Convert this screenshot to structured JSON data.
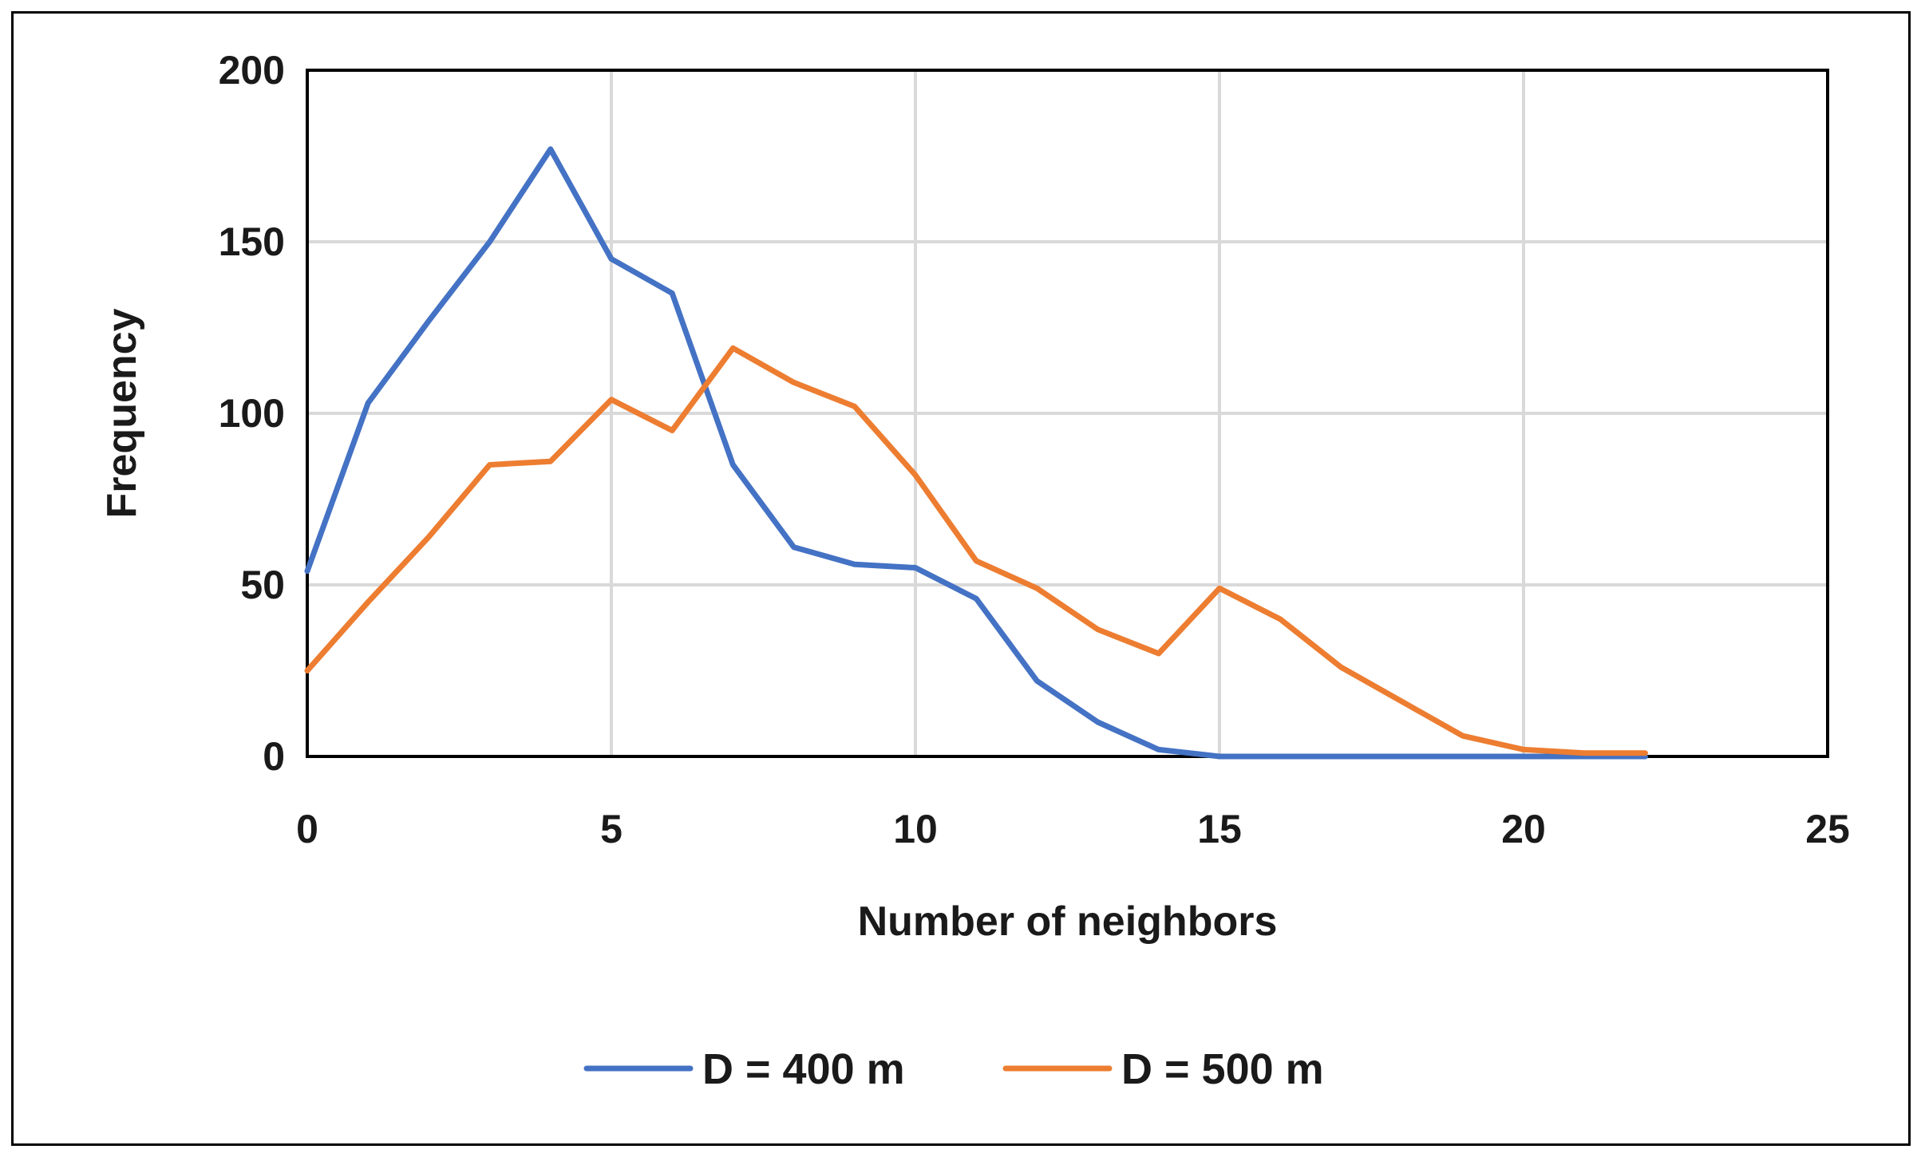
{
  "chart_data": {
    "type": "line",
    "title": "",
    "xlabel": "Number of neighbors",
    "ylabel": "Frequency",
    "xlim": [
      0,
      25
    ],
    "ylim": [
      0,
      200
    ],
    "x_ticks": [
      0,
      5,
      10,
      15,
      20,
      25
    ],
    "y_ticks": [
      0,
      50,
      100,
      150,
      200
    ],
    "grid": true,
    "legend_position": "bottom",
    "series": [
      {
        "name": "D = 400 m",
        "color": "#4472C4",
        "x": [
          0,
          1,
          2,
          3,
          4,
          5,
          6,
          7,
          8,
          9,
          10,
          11,
          12,
          13,
          14,
          15,
          16,
          17,
          18,
          19,
          20,
          21,
          22
        ],
        "values": [
          54,
          103,
          127,
          150,
          177,
          145,
          135,
          85,
          61,
          56,
          55,
          46,
          22,
          10,
          2,
          0,
          0,
          0,
          0,
          0,
          0,
          0,
          0
        ]
      },
      {
        "name": "D = 500 m",
        "color": "#ED7D31",
        "x": [
          0,
          1,
          2,
          3,
          4,
          5,
          6,
          7,
          8,
          9,
          10,
          11,
          12,
          13,
          14,
          15,
          16,
          17,
          18,
          19,
          20,
          21,
          22
        ],
        "values": [
          25,
          45,
          64,
          85,
          86,
          104,
          95,
          119,
          109,
          102,
          82,
          57,
          49,
          37,
          30,
          49,
          40,
          26,
          16,
          6,
          2,
          1,
          1
        ]
      }
    ]
  }
}
